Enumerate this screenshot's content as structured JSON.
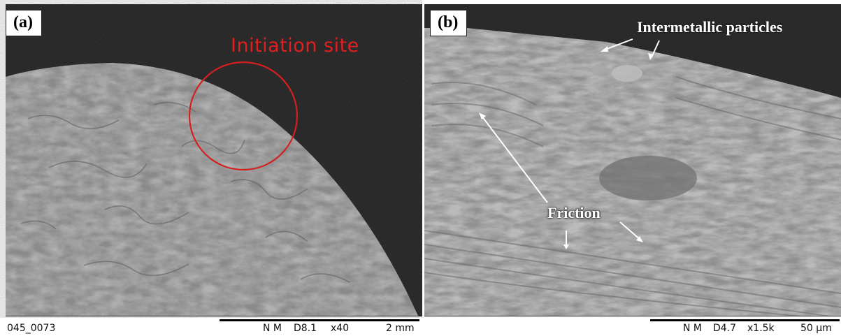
{
  "panel_a": {
    "label": "(a)",
    "annotation": "Initiation site",
    "scalebar": {
      "image_id": "045_0073",
      "mode": "N M",
      "working_distance": "D8.1",
      "magnification": "x40",
      "scale": "2 mm"
    }
  },
  "panel_b": {
    "label": "(b)",
    "annotations": {
      "intermetallic": "Intermetallic particles",
      "friction": "Friction"
    },
    "scalebar": {
      "mode": "N M",
      "working_distance": "D4.7",
      "magnification": "x1.5k",
      "scale": "50 µm"
    }
  },
  "colors": {
    "annotation_red": "#e02020",
    "background_dark": "#1f1f1f",
    "surface_gray": "#8b8b8b"
  }
}
